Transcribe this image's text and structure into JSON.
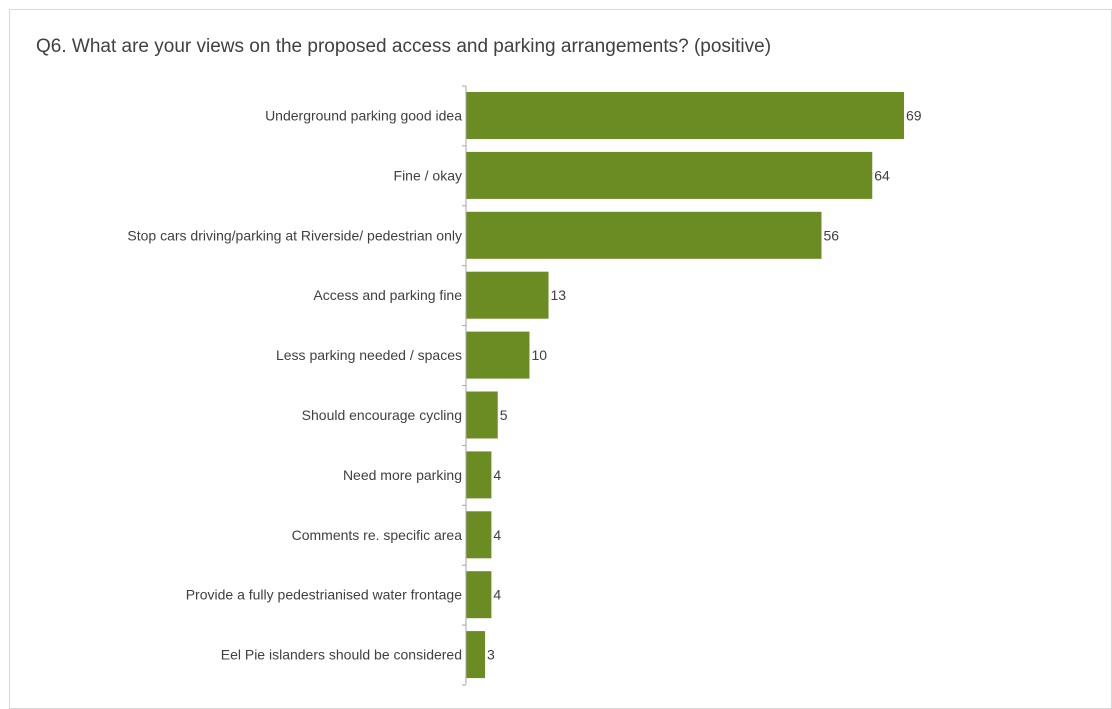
{
  "chart_data": {
    "type": "bar",
    "orientation": "horizontal",
    "title": "Q6. What are your views on the proposed access and parking arrangements? (positive)",
    "xlabel": "",
    "ylabel": "",
    "categories": [
      "Underground parking good idea",
      "Fine / okay",
      "Stop cars driving/parking at Riverside/ pedestrian only",
      "Access and parking fine",
      "Less parking needed / spaces",
      "Should encourage cycling",
      "Need more parking",
      "Comments re. specific area",
      "Provide a fully pedestrianised water frontage",
      "Eel Pie islanders should be considered"
    ],
    "values": [
      69,
      64,
      56,
      13,
      10,
      5,
      4,
      4,
      4,
      3
    ],
    "xlim": [
      0,
      69
    ],
    "grid": false,
    "legend": "none",
    "data_labels": true,
    "bar_color": "#6b8c23",
    "axis_color": "#a6a6a6",
    "text_color": "#404040"
  }
}
